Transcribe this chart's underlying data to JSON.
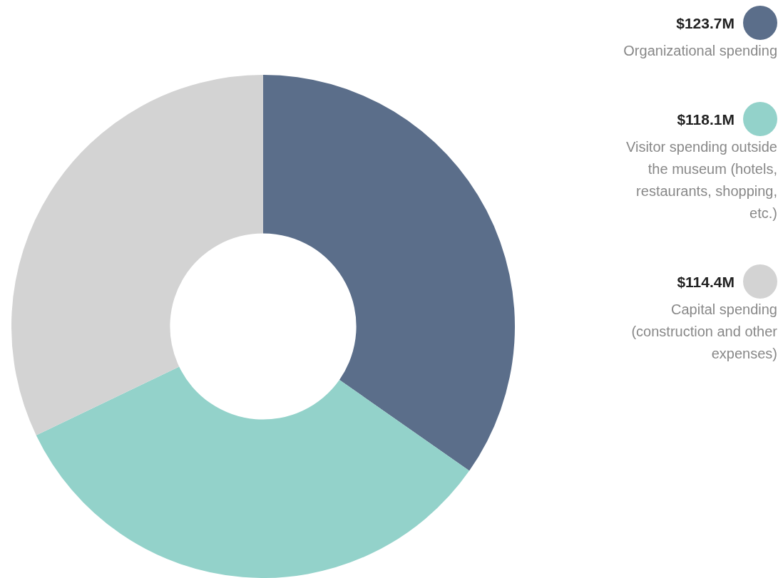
{
  "chart_data": {
    "type": "donut",
    "categories": [
      "Organizational spending",
      "Visitor spending outside the museum (hotels, restaurants, shopping, etc.)",
      "Capital spending (construction and other expenses)"
    ],
    "values": [
      123.7,
      118.1,
      114.4
    ],
    "value_labels": [
      "$123.7M",
      "$118.1M",
      "$114.4M"
    ],
    "colors": [
      "#5b6e8a",
      "#93d2ca",
      "#d3d3d3"
    ],
    "legend": "right"
  }
}
